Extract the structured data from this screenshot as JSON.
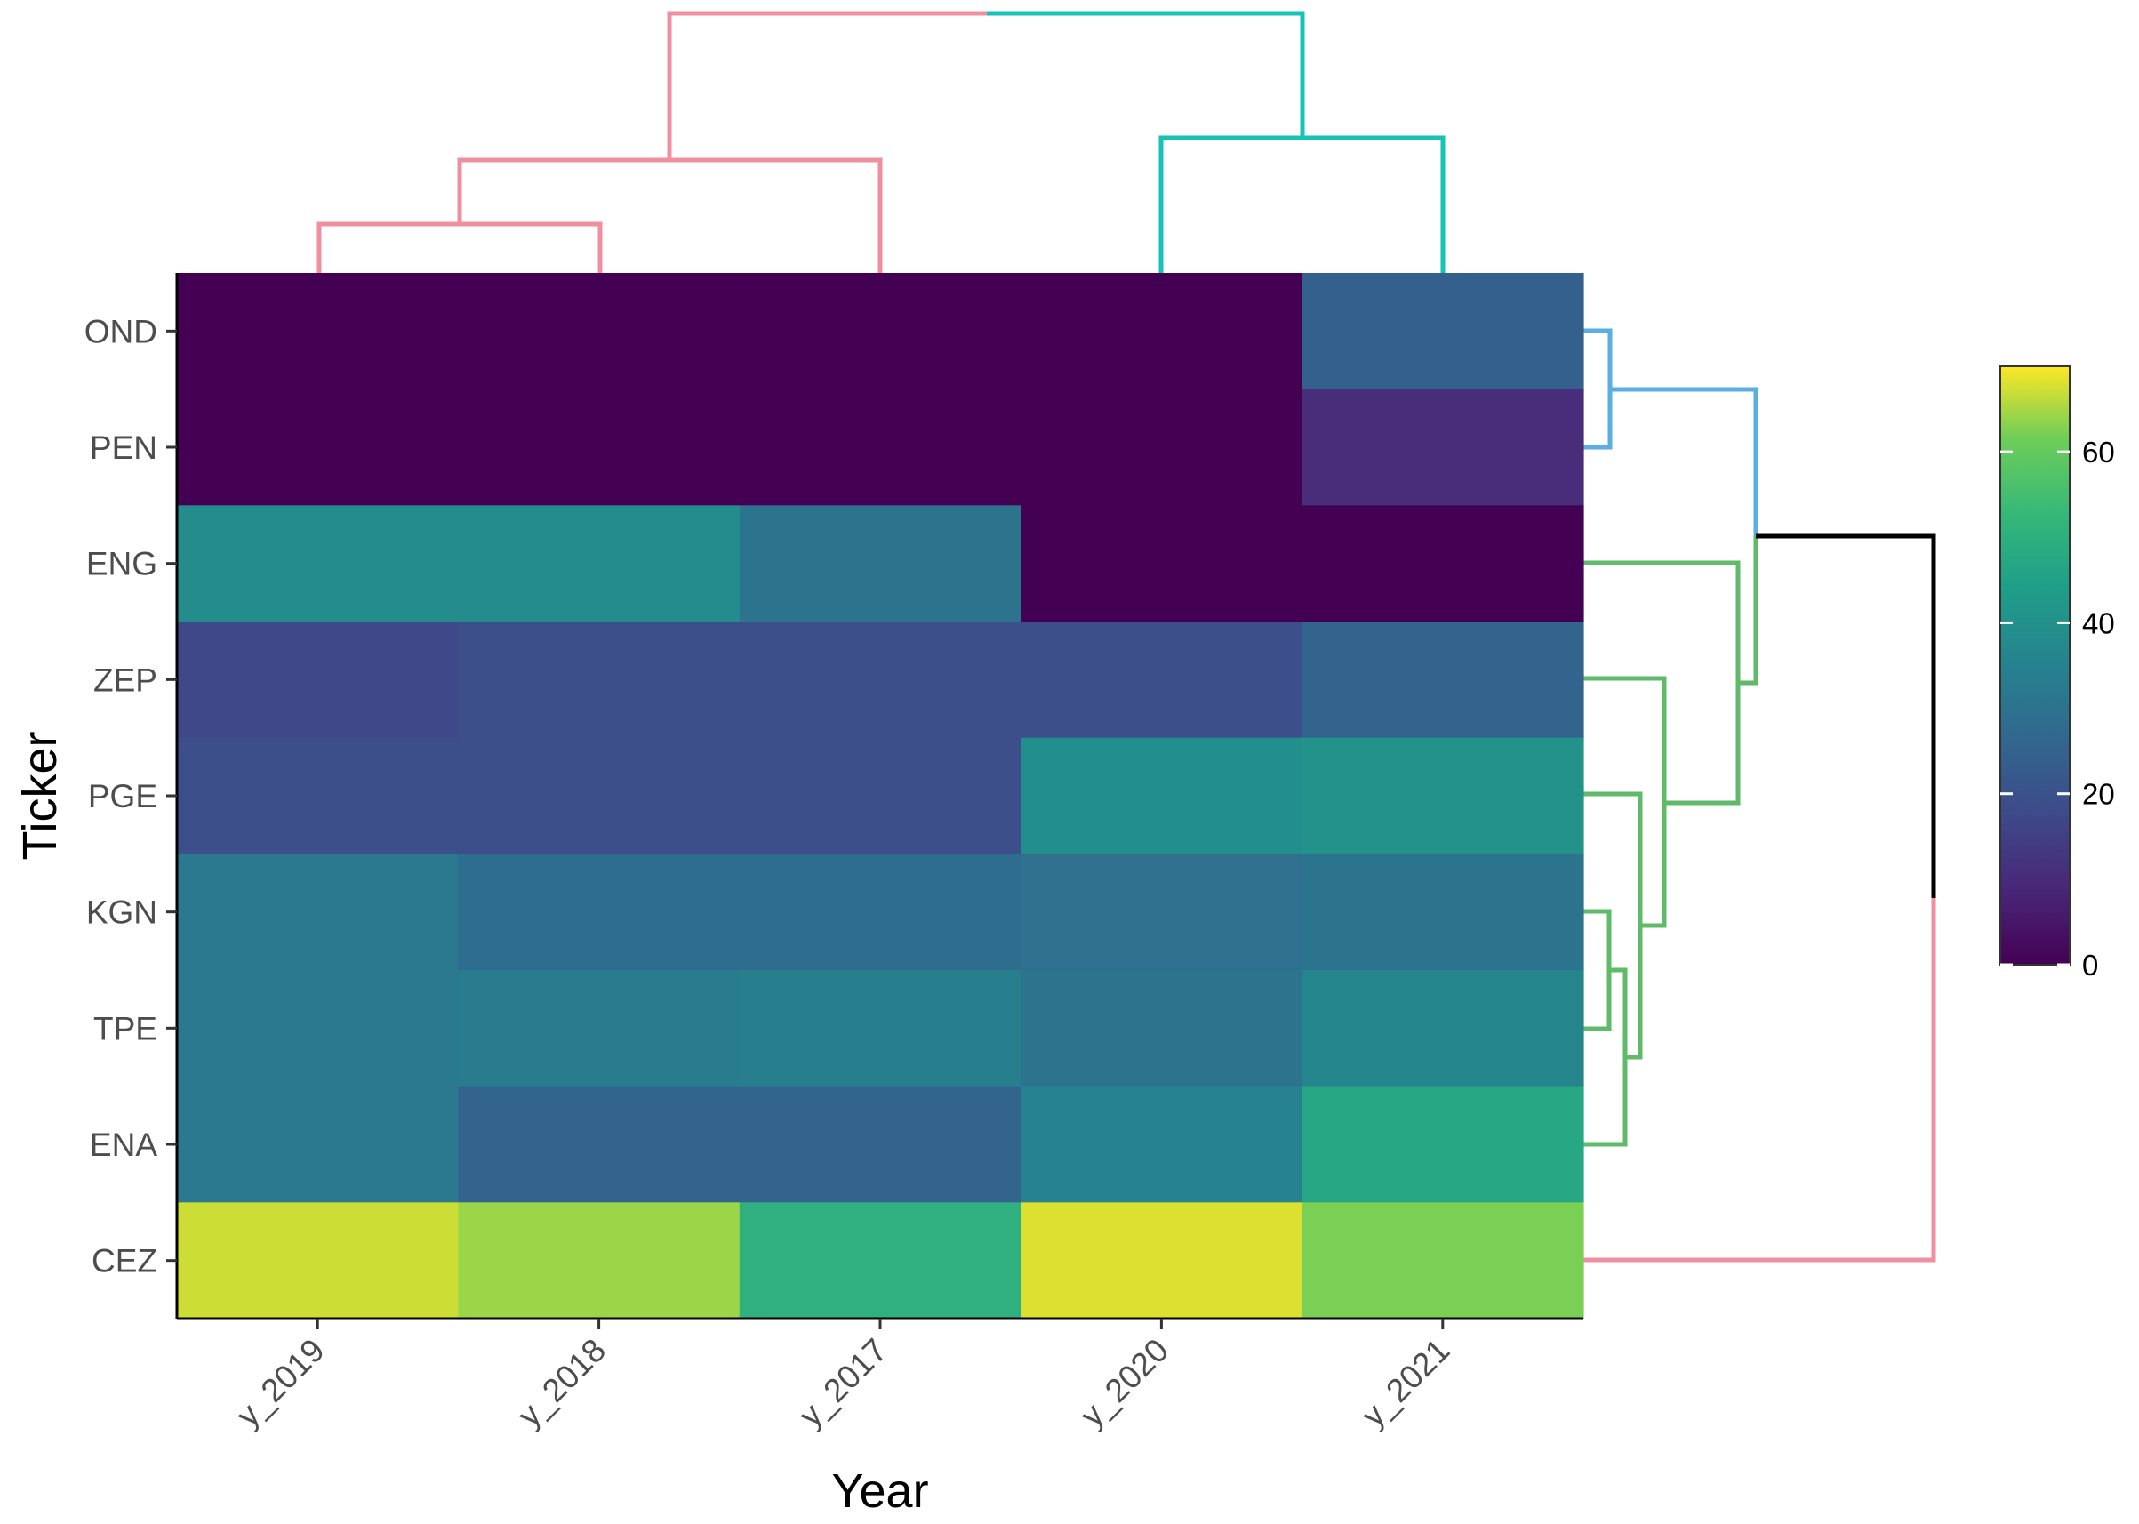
{
  "chart_data": {
    "type": "heatmap",
    "title": "",
    "xlabel": "Year",
    "ylabel": "Ticker",
    "columns": [
      "y_2019",
      "y_2018",
      "y_2017",
      "y_2020",
      "y_2021"
    ],
    "rows": [
      "OND",
      "PEN",
      "ENG",
      "ZEP",
      "PGE",
      "KGN",
      "TPE",
      "ENA",
      "CEZ"
    ],
    "values": [
      [
        0,
        0,
        0,
        0,
        24
      ],
      [
        0,
        0,
        0,
        0,
        10
      ],
      [
        38,
        38,
        30,
        0,
        0
      ],
      [
        17,
        19,
        19,
        19,
        25
      ],
      [
        19,
        19,
        19,
        39,
        40
      ],
      [
        32,
        28,
        28,
        29,
        30
      ],
      [
        32,
        33,
        34,
        30,
        36
      ],
      [
        32,
        25,
        25,
        35,
        47
      ],
      [
        67,
        64,
        50,
        68,
        62
      ]
    ],
    "colorbar": {
      "min": 0,
      "max": 70,
      "ticks": [
        0,
        20,
        40,
        60
      ],
      "colormap": "viridis"
    },
    "column_dendrogram_colors": [
      "#f08fa0",
      "#17c2b7"
    ],
    "row_dendrogram_colors": [
      "#5aaee0",
      "#5fba6a",
      "#f08fa0",
      "#000000"
    ]
  }
}
